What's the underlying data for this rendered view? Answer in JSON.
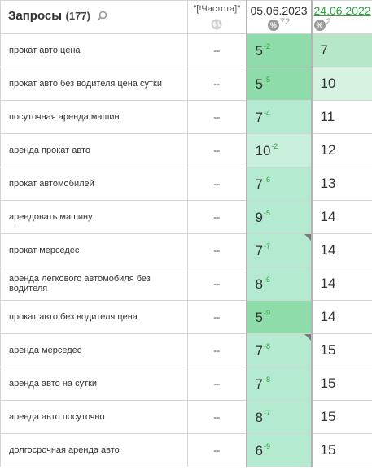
{
  "header": {
    "queries_title": "Запросы",
    "queries_count": "(177)",
    "freq_label": "\"[!Частота]\"",
    "date1": "05.06.2023",
    "date1_count": "72",
    "date2": "24.06.2022",
    "date2_count": "2"
  },
  "colors": {
    "pos_3_5": "#8fdcab",
    "pos_6_9": "#b3ead0",
    "pos_10": "#c9f0dc",
    "pos_7_prev": "#b6e8c8",
    "pos_10_prev": "#d6f3e2",
    "white": "#ffffff",
    "change_positive": "#2fa544",
    "date2_link": "#2aa53c"
  },
  "rows": [
    {
      "query": "прокат авто цена",
      "freq": "--",
      "pos1": "5",
      "delta": "-2",
      "pos2": "7"
    },
    {
      "query": "прокат авто без водителя цена сутки",
      "freq": "--",
      "pos1": "5",
      "delta": "-5",
      "pos2": "10"
    },
    {
      "query": "посуточная аренда машин",
      "freq": "--",
      "pos1": "7",
      "delta": "-4",
      "pos2": "11"
    },
    {
      "query": "аренда прокат авто",
      "freq": "--",
      "pos1": "10",
      "delta": "-2",
      "pos2": "12"
    },
    {
      "query": "прокат автомобилей",
      "freq": "--",
      "pos1": "7",
      "delta": "-6",
      "pos2": "13"
    },
    {
      "query": "арендовать машину",
      "freq": "--",
      "pos1": "9",
      "delta": "-5",
      "pos2": "14"
    },
    {
      "query": "прокат мерседес",
      "freq": "--",
      "pos1": "7",
      "delta": "-7",
      "pos2": "14",
      "corner": true
    },
    {
      "query": "аренда легкового автомобиля без водителя",
      "freq": "--",
      "pos1": "8",
      "delta": "-6",
      "pos2": "14"
    },
    {
      "query": "прокат авто без водителя цена",
      "freq": "--",
      "pos1": "5",
      "delta": "-9",
      "pos2": "14"
    },
    {
      "query": "аренда мерседес",
      "freq": "--",
      "pos1": "7",
      "delta": "-8",
      "pos2": "15",
      "corner": true
    },
    {
      "query": "аренда авто на сутки",
      "freq": "--",
      "pos1": "7",
      "delta": "-8",
      "pos2": "15"
    },
    {
      "query": "аренда авто посуточно",
      "freq": "--",
      "pos1": "8",
      "delta": "-7",
      "pos2": "15"
    },
    {
      "query": "долгосрочная аренда авто",
      "freq": "--",
      "pos1": "6",
      "delta": "-9",
      "pos2": "15"
    }
  ]
}
